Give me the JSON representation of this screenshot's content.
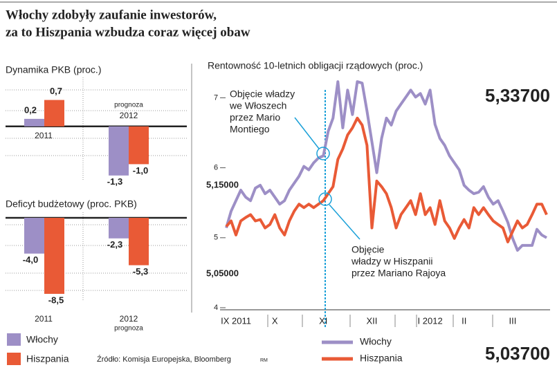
{
  "header": {
    "title": [
      "Włochy zdobyły zaufanie inwestorów,",
      "za to Hiszpania wzbudza coraz więcej obaw"
    ]
  },
  "chart_data": [
    {
      "type": "bar",
      "title": "Dynamika PKB (proc.)",
      "categories": [
        "2011",
        "2012"
      ],
      "note": "prognoza",
      "ylim": [
        -1.45,
        1.15
      ],
      "series": [
        {
          "name": "Włochy",
          "color": "#9d8fc6",
          "values": [
            0.2,
            -1.3
          ],
          "value_labels": [
            "0,2",
            "-1,3"
          ]
        },
        {
          "name": "Hiszpania",
          "color": "#e95a36",
          "values": [
            0.7,
            -1.0
          ],
          "value_labels": [
            "0,7",
            "-1,0"
          ]
        }
      ]
    },
    {
      "type": "bar",
      "title": "Deficyt budżetowy (proc. PKB)",
      "categories": [
        "2011",
        "2012"
      ],
      "note": "prognoza",
      "ylim": [
        -9.2,
        0
      ],
      "series": [
        {
          "name": "Włochy",
          "color": "#9d8fc6",
          "values": [
            -4.0,
            -2.3
          ],
          "value_labels": [
            "-4,0",
            "-2,3"
          ]
        },
        {
          "name": "Hiszpania",
          "color": "#e95a36",
          "values": [
            -8.5,
            -5.3
          ],
          "value_labels": [
            "-8,5",
            "-5,3"
          ]
        }
      ]
    },
    {
      "type": "line",
      "title": "Rentowność 10-letnich obligacji rządowych (proc.)",
      "ylim": [
        4,
        7.35
      ],
      "yticks": [
        4,
        5,
        6,
        7
      ],
      "categories": [
        null,
        null,
        "IX 2011",
        null,
        null,
        null,
        null,
        null,
        null,
        null,
        "X",
        null,
        null,
        null,
        null,
        null,
        null,
        null,
        null,
        null,
        "XI",
        null,
        null,
        null,
        null,
        null,
        null,
        null,
        null,
        null,
        "XII",
        null,
        null,
        null,
        null,
        null,
        null,
        null,
        null,
        null,
        null,
        null,
        "I 2012",
        null,
        null,
        null,
        null,
        null,
        null,
        "II",
        null,
        null,
        null,
        null,
        null,
        null,
        null,
        null,
        null,
        "III",
        null,
        null,
        null,
        null,
        null,
        null,
        null
      ],
      "series": [
        {
          "name": "Włochy",
          "color": "#9d8fc6",
          "values": [
            5.14,
            5.38,
            5.53,
            5.68,
            5.58,
            5.53,
            5.71,
            5.75,
            5.63,
            5.68,
            5.58,
            5.48,
            5.53,
            5.68,
            5.78,
            5.88,
            6.02,
            5.97,
            6.07,
            6.14,
            6.17,
            6.52,
            6.71,
            7.23,
            6.57,
            7.11,
            6.76,
            7.23,
            7.21,
            6.81,
            6.37,
            5.93,
            6.42,
            6.71,
            6.61,
            6.81,
            6.91,
            7.01,
            7.11,
            7.01,
            7.06,
            6.91,
            7.11,
            6.62,
            6.42,
            6.32,
            6.17,
            6.07,
            5.97,
            5.75,
            5.68,
            5.63,
            5.65,
            5.73,
            5.58,
            5.48,
            5.53,
            5.38,
            5.22,
            4.99,
            4.82,
            4.89,
            4.89,
            4.89,
            5.12,
            5.04,
            5.0
          ]
        },
        {
          "name": "Hiszpania",
          "color": "#e95a36",
          "values": [
            5.16,
            5.24,
            5.04,
            5.24,
            5.29,
            5.33,
            5.24,
            5.26,
            5.14,
            5.19,
            5.33,
            5.14,
            5.04,
            5.24,
            5.38,
            5.48,
            5.43,
            5.48,
            5.43,
            5.48,
            5.53,
            5.63,
            5.73,
            6.12,
            6.27,
            6.47,
            6.57,
            6.71,
            6.61,
            6.32,
            5.14,
            5.81,
            5.73,
            5.63,
            5.43,
            5.14,
            5.33,
            5.43,
            5.53,
            5.33,
            5.63,
            5.33,
            5.43,
            5.19,
            5.53,
            5.24,
            5.14,
            4.99,
            5.14,
            5.26,
            5.14,
            5.43,
            5.33,
            5.43,
            5.33,
            5.24,
            5.19,
            5.14,
            4.94,
            5.09,
            5.24,
            5.14,
            5.19,
            5.33,
            5.48,
            5.48,
            5.33
          ]
        }
      ],
      "annotations": [
        {
          "lines": [
            "Objęcie władzy",
            "we Włoszech",
            "przez Mario",
            "Montiego"
          ]
        },
        {
          "lines": [
            "Objęcie",
            "władzy w Hiszpanii",
            "przez Mariano Rajoya"
          ]
        }
      ],
      "callouts": [
        "5,33700",
        "5,03700",
        "5,15000",
        "5,05000"
      ]
    }
  ],
  "footer": {
    "source": "Źródło: Komisja Europejska, Bloomberg",
    "credit": "RM"
  }
}
